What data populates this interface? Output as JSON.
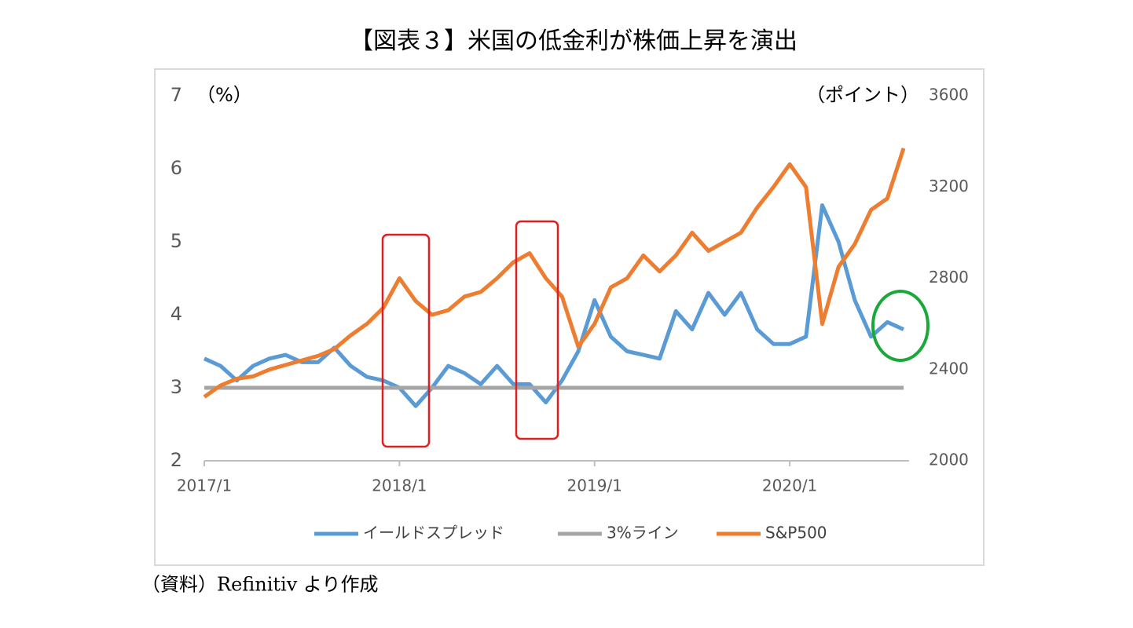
{
  "title": "【図表３】米国の低金利が株価上昇を演出",
  "source": "（資料）Refinitiv より作成",
  "chart_data": {
    "type": "line",
    "y_label": "（%）",
    "y2_label": "（ポイント）",
    "x": [
      "2017/1",
      "2017/2",
      "2017/3",
      "2017/4",
      "2017/5",
      "2017/6",
      "2017/7",
      "2017/8",
      "2017/9",
      "2017/10",
      "2017/11",
      "2017/12",
      "2018/1",
      "2018/2",
      "2018/3",
      "2018/4",
      "2018/5",
      "2018/6",
      "2018/7",
      "2018/8",
      "2018/9",
      "2018/10",
      "2018/11",
      "2018/12",
      "2019/1",
      "2019/2",
      "2019/3",
      "2019/4",
      "2019/5",
      "2019/6",
      "2019/7",
      "2019/8",
      "2019/9",
      "2019/10",
      "2019/11",
      "2019/12",
      "2020/1",
      "2020/2",
      "2020/3",
      "2020/4",
      "2020/5",
      "2020/6",
      "2020/7",
      "2020/8"
    ],
    "xticks": [
      "2017/1",
      "2018/1",
      "2019/1",
      "2020/1"
    ],
    "ylim": [
      2,
      7
    ],
    "yticks": [
      2,
      3,
      4,
      5,
      6,
      7
    ],
    "y2lim": [
      2000,
      3600
    ],
    "y2ticks": [
      2000,
      2400,
      2800,
      3200,
      3600
    ],
    "legend": "bottom",
    "series": [
      {
        "name": "イールドスプレッド",
        "color": "#5b9bd5",
        "axis": "y",
        "values": [
          3.4,
          3.3,
          3.1,
          3.3,
          3.4,
          3.45,
          3.35,
          3.35,
          3.55,
          3.3,
          3.15,
          3.1,
          3.0,
          2.75,
          3.0,
          3.3,
          3.2,
          3.05,
          3.3,
          3.05,
          3.05,
          2.8,
          3.1,
          3.5,
          4.2,
          3.7,
          3.5,
          3.45,
          3.4,
          4.05,
          3.8,
          4.3,
          4.0,
          4.3,
          3.8,
          3.6,
          3.6,
          3.7,
          5.5,
          5.0,
          4.2,
          3.7,
          3.9,
          3.8
        ]
      },
      {
        "name": "3%ライン",
        "color": "#a5a5a5",
        "axis": "y",
        "values": [
          3,
          3,
          3,
          3,
          3,
          3,
          3,
          3,
          3,
          3,
          3,
          3,
          3,
          3,
          3,
          3,
          3,
          3,
          3,
          3,
          3,
          3,
          3,
          3,
          3,
          3,
          3,
          3,
          3,
          3,
          3,
          3,
          3,
          3,
          3,
          3,
          3,
          3,
          3,
          3,
          3,
          3,
          3,
          3
        ]
      },
      {
        "name": "S&P500",
        "color": "#ed7d31",
        "axis": "y2",
        "values": [
          2280,
          2330,
          2360,
          2370,
          2400,
          2420,
          2440,
          2460,
          2490,
          2550,
          2600,
          2670,
          2800,
          2700,
          2640,
          2660,
          2720,
          2740,
          2800,
          2870,
          2910,
          2800,
          2720,
          2500,
          2600,
          2760,
          2800,
          2900,
          2830,
          2900,
          3000,
          2920,
          2960,
          3000,
          3110,
          3200,
          3300,
          3200,
          2600,
          2850,
          2950,
          3100,
          3150,
          3370
        ]
      }
    ]
  }
}
